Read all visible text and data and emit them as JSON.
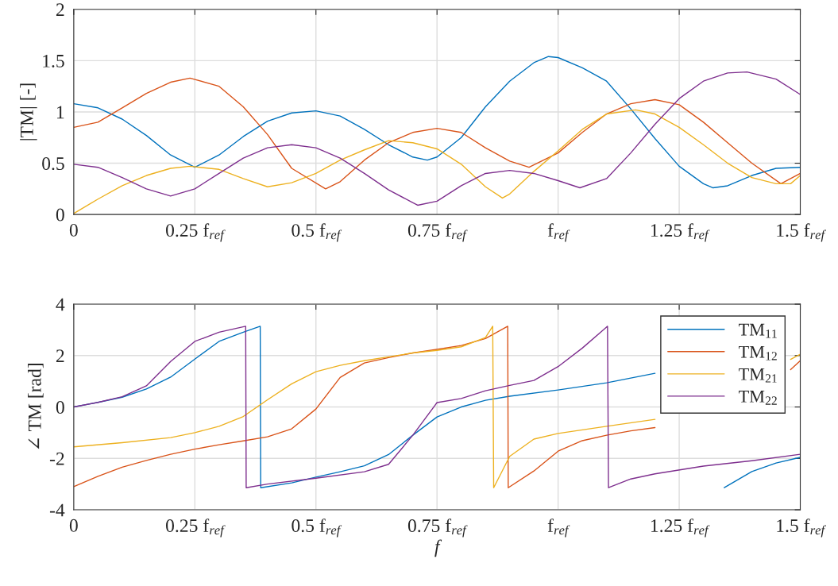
{
  "chart_data": [
    {
      "type": "line",
      "ylabel": "|TM| [-]",
      "xlim": [
        0,
        1.5
      ],
      "ylim": [
        0,
        2
      ],
      "grid": true,
      "legend": false,
      "xticks": [
        0,
        {
          "value": 0.25,
          "label": "0.25 f$_{ref}$"
        },
        {
          "value": 0.5,
          "label": "0.5 f$_{ref}$"
        },
        {
          "value": 0.75,
          "label": "0.75 f$_{ref}$"
        },
        {
          "value": 1,
          "label": "f$_{ref}$"
        },
        {
          "value": 1.25,
          "label": "1.25 f$_{ref}$"
        },
        {
          "value": 1.5,
          "label": "1.5 f$_{ref}$"
        }
      ],
      "yticks": [
        0,
        0.5,
        1,
        1.5,
        2
      ],
      "series": [
        {
          "color": "#0072bd",
          "x": [
            0,
            0.05,
            0.1,
            0.15,
            0.2,
            0.25,
            0.3,
            0.35,
            0.4,
            0.45,
            0.5,
            0.55,
            0.6,
            0.65,
            0.7,
            0.73,
            0.75,
            0.8,
            0.85,
            0.9,
            0.95,
            0.98,
            1.0,
            1.05,
            1.1,
            1.15,
            1.2,
            1.25,
            1.3,
            1.32,
            1.35,
            1.4,
            1.45,
            1.5
          ],
          "values": [
            1.08,
            1.04,
            0.93,
            0.77,
            0.58,
            0.46,
            0.58,
            0.76,
            0.91,
            0.99,
            1.01,
            0.96,
            0.83,
            0.68,
            0.56,
            0.53,
            0.56,
            0.75,
            1.05,
            1.3,
            1.48,
            1.54,
            1.53,
            1.43,
            1.3,
            1.03,
            0.74,
            0.47,
            0.3,
            0.26,
            0.28,
            0.38,
            0.45,
            0.46
          ]
        },
        {
          "color": "#d95319",
          "x": [
            0,
            0.05,
            0.1,
            0.15,
            0.2,
            0.24,
            0.3,
            0.35,
            0.4,
            0.45,
            0.52,
            0.55,
            0.6,
            0.65,
            0.7,
            0.75,
            0.8,
            0.85,
            0.9,
            0.94,
            1.0,
            1.05,
            1.1,
            1.15,
            1.2,
            1.25,
            1.3,
            1.35,
            1.4,
            1.46,
            1.5
          ],
          "values": [
            0.85,
            0.9,
            1.04,
            1.18,
            1.29,
            1.33,
            1.25,
            1.05,
            0.78,
            0.45,
            0.25,
            0.32,
            0.53,
            0.7,
            0.8,
            0.84,
            0.8,
            0.65,
            0.52,
            0.46,
            0.6,
            0.8,
            0.98,
            1.08,
            1.12,
            1.07,
            0.9,
            0.7,
            0.5,
            0.3,
            0.4
          ]
        },
        {
          "color": "#edb120",
          "x": [
            0,
            0.05,
            0.1,
            0.15,
            0.2,
            0.24,
            0.3,
            0.35,
            0.4,
            0.45,
            0.5,
            0.55,
            0.6,
            0.65,
            0.7,
            0.75,
            0.8,
            0.85,
            0.885,
            0.9,
            0.95,
            1.0,
            1.05,
            1.1,
            1.16,
            1.2,
            1.25,
            1.3,
            1.35,
            1.4,
            1.45,
            1.48,
            1.5
          ],
          "values": [
            0.01,
            0.15,
            0.28,
            0.38,
            0.45,
            0.47,
            0.44,
            0.35,
            0.27,
            0.31,
            0.4,
            0.53,
            0.63,
            0.72,
            0.7,
            0.64,
            0.49,
            0.27,
            0.16,
            0.2,
            0.42,
            0.62,
            0.83,
            0.98,
            1.02,
            0.98,
            0.85,
            0.68,
            0.5,
            0.36,
            0.3,
            0.3,
            0.38
          ]
        },
        {
          "color": "#7e2f8e",
          "x": [
            0,
            0.05,
            0.1,
            0.15,
            0.2,
            0.25,
            0.3,
            0.35,
            0.4,
            0.45,
            0.5,
            0.55,
            0.6,
            0.65,
            0.71,
            0.75,
            0.8,
            0.85,
            0.9,
            0.95,
            1.0,
            1.045,
            1.1,
            1.15,
            1.2,
            1.25,
            1.3,
            1.35,
            1.39,
            1.45,
            1.5
          ],
          "values": [
            0.49,
            0.46,
            0.36,
            0.25,
            0.18,
            0.25,
            0.4,
            0.55,
            0.65,
            0.68,
            0.65,
            0.55,
            0.4,
            0.24,
            0.09,
            0.13,
            0.28,
            0.4,
            0.43,
            0.4,
            0.33,
            0.26,
            0.35,
            0.6,
            0.88,
            1.13,
            1.3,
            1.38,
            1.39,
            1.32,
            1.17
          ]
        }
      ]
    },
    {
      "type": "line",
      "xlabel": "f",
      "ylabel": "∠ TM [rad]",
      "xlim": [
        0,
        1.5
      ],
      "ylim": [
        -4,
        4
      ],
      "grid": true,
      "legend": "top right",
      "xticks": [
        0,
        {
          "value": 0.25,
          "label": "0.25 f$_{ref}$"
        },
        {
          "value": 0.5,
          "label": "0.5 f$_{ref}$"
        },
        {
          "value": 0.75,
          "label": "0.75 f$_{ref}$"
        },
        {
          "value": 1,
          "label": "f$_{ref}$"
        },
        {
          "value": 1.25,
          "label": "1.25 f$_{ref}$"
        },
        {
          "value": 1.5,
          "label": "1.5 f$_{ref}$"
        }
      ],
      "yticks": [
        -4,
        -2,
        0,
        2,
        4
      ],
      "series": [
        {
          "name": "TM$_{11}$",
          "color": "#0072bd",
          "x": [
            0,
            0.05,
            0.1,
            0.15,
            0.2,
            0.25,
            0.3,
            0.35,
            0.385,
            0.386,
            0.45,
            0.5,
            0.55,
            0.6,
            0.65,
            0.7,
            0.75,
            0.8,
            0.85,
            0.9,
            1.0,
            1.1,
            1.2,
            1.3,
            1.343,
            1.4,
            1.45,
            1.5
          ],
          "values": [
            0,
            0.18,
            0.38,
            0.7,
            1.16,
            1.86,
            2.55,
            2.91,
            3.14,
            -3.14,
            -2.95,
            -2.73,
            -2.52,
            -2.29,
            -1.85,
            -1.1,
            -0.39,
            0,
            0.26,
            0.42,
            0.66,
            0.94,
            1.31,
            null,
            -3.14,
            -2.51,
            -2.18,
            -1.96
          ]
        },
        {
          "name": "TM$_{12}$",
          "color": "#d95319",
          "x": [
            0,
            0.05,
            0.1,
            0.15,
            0.2,
            0.25,
            0.3,
            0.35,
            0.4,
            0.45,
            0.5,
            0.55,
            0.6,
            0.65,
            0.7,
            0.75,
            0.8,
            0.85,
            0.896,
            0.897,
            0.95,
            1.0,
            1.05,
            1.1,
            1.15,
            1.2,
            1.35,
            1.48,
            1.5
          ],
          "values": [
            -3.1,
            -2.7,
            -2.34,
            -2.08,
            -1.84,
            -1.64,
            -1.47,
            -1.32,
            -1.16,
            -0.85,
            -0.08,
            1.15,
            1.71,
            1.92,
            2.1,
            2.24,
            2.39,
            2.66,
            3.14,
            -3.14,
            -2.49,
            -1.72,
            -1.31,
            -1.1,
            -0.93,
            -0.8,
            null,
            1.45,
            1.8
          ]
        },
        {
          "name": "TM$_{21}$",
          "color": "#edb120",
          "x": [
            0,
            0.1,
            0.2,
            0.25,
            0.3,
            0.35,
            0.4,
            0.45,
            0.5,
            0.55,
            0.6,
            0.65,
            0.7,
            0.75,
            0.8,
            0.85,
            0.865,
            0.867,
            0.9,
            0.95,
            1.0,
            1.1,
            1.2,
            1.35,
            1.48,
            1.5
          ],
          "values": [
            -1.55,
            -1.39,
            -1.19,
            -1.0,
            -0.75,
            -0.37,
            0.28,
            0.9,
            1.37,
            1.62,
            1.8,
            1.95,
            2.1,
            2.2,
            2.34,
            2.7,
            3.14,
            -3.14,
            -1.92,
            -1.25,
            -1.03,
            -0.75,
            -0.48,
            null,
            1.85,
            2.05
          ]
        },
        {
          "name": "TM$_{22}$",
          "color": "#7e2f8e",
          "x": [
            0,
            0.05,
            0.1,
            0.15,
            0.2,
            0.25,
            0.3,
            0.355,
            0.356,
            0.4,
            0.5,
            0.6,
            0.65,
            0.7,
            0.75,
            0.8,
            0.85,
            0.9,
            0.95,
            1.0,
            1.05,
            1.102,
            1.104,
            1.15,
            1.2,
            1.3,
            1.4,
            1.5
          ],
          "values": [
            0,
            0.18,
            0.4,
            0.82,
            1.77,
            2.55,
            2.91,
            3.14,
            -3.14,
            -3.0,
            -2.77,
            -2.52,
            -2.23,
            -1.1,
            0.17,
            0.33,
            0.63,
            0.84,
            1.03,
            1.57,
            2.29,
            3.14,
            -3.14,
            -2.8,
            -2.6,
            -2.3,
            -2.09,
            -1.84
          ]
        }
      ]
    }
  ]
}
